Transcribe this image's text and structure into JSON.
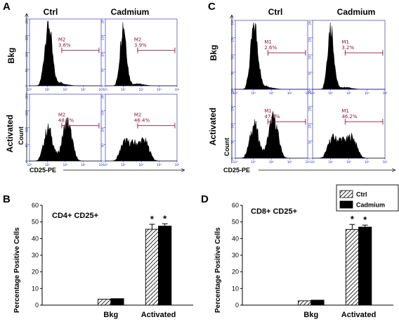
{
  "panel_labels": {
    "A": "A",
    "B": "B",
    "C": "C",
    "D": "D"
  },
  "chart_data": [
    {
      "type": "histogram",
      "panel": "A",
      "columns": [
        "Ctrl",
        "Cadmium"
      ],
      "rows": [
        "Bkg",
        "Activated"
      ],
      "xlabel": "CD25-PE",
      "ylabel": "Count",
      "x_ticks": [
        "10⁰",
        "10¹",
        "10²",
        "10³",
        "10⁴"
      ],
      "y_ticks": [
        "0",
        "50",
        "100",
        "150",
        "200"
      ],
      "ylim": [
        0,
        200
      ],
      "xlim": [
        0,
        4
      ],
      "gate_name": "M2",
      "gates": [
        {
          "row": "Bkg",
          "column": "Ctrl",
          "percent": "3.6%"
        },
        {
          "row": "Bkg",
          "column": "Cadmium",
          "percent": "3.9%"
        },
        {
          "row": "Activated",
          "column": "Ctrl",
          "percent": "48.4%"
        },
        {
          "row": "Activated",
          "column": "Cadmium",
          "percent": "46.4%"
        }
      ]
    },
    {
      "type": "histogram",
      "panel": "C",
      "columns": [
        "Ctrl",
        "Cadmium"
      ],
      "rows": [
        "Bkg",
        "Activated"
      ],
      "xlabel": "CD25-PE",
      "ylabel": "Count",
      "x_ticks": [
        "10⁰",
        "10¹",
        "10²",
        "10³",
        "10⁴"
      ],
      "y_ticks": [
        "0",
        "50",
        "100",
        "150",
        "200"
      ],
      "ylim": [
        0,
        200
      ],
      "xlim": [
        0,
        4
      ],
      "gate_name": "M1",
      "gates": [
        {
          "row": "Bkg",
          "column": "Ctrl",
          "percent": "2.6%"
        },
        {
          "row": "Bkg",
          "column": "Cadmium",
          "percent": "3.2%"
        },
        {
          "row": "Activated",
          "column": "Ctrl",
          "percent": "47.5%"
        },
        {
          "row": "Activated",
          "column": "Cadmium",
          "percent": "46.2%"
        }
      ]
    },
    {
      "type": "bar",
      "panel": "B",
      "title": "CD4+ CD25+",
      "ylabel": "Percentage Positive Cells",
      "categories": [
        "Bkg",
        "Activated"
      ],
      "ylim": [
        0,
        60
      ],
      "y_ticks": [
        "0",
        "10",
        "20",
        "30",
        "40",
        "50",
        "60"
      ],
      "series": [
        {
          "name": "Ctrl",
          "values": [
            3.6,
            45.6
          ],
          "errors": [
            0.3,
            3.0
          ]
        },
        {
          "name": "Cadmium",
          "values": [
            3.9,
            47.5
          ],
          "errors": [
            0.3,
            1.4
          ]
        }
      ],
      "significance": [
        {
          "category": "Activated",
          "series": "Ctrl",
          "mark": "*"
        },
        {
          "category": "Activated",
          "series": "Cadmium",
          "mark": "*"
        }
      ]
    },
    {
      "type": "bar",
      "panel": "D",
      "title": "CD8+ CD25+",
      "ylabel": "Percentage Positive Cells",
      "categories": [
        "Bkg",
        "Activated"
      ],
      "ylim": [
        0,
        60
      ],
      "y_ticks": [
        "0",
        "10",
        "20",
        "30",
        "40",
        "50",
        "60"
      ],
      "series": [
        {
          "name": "Ctrl",
          "values": [
            2.6,
            45.5
          ],
          "errors": [
            0.2,
            3.0
          ]
        },
        {
          "name": "Cadmium",
          "values": [
            3.0,
            46.9
          ],
          "errors": [
            0.2,
            1.2
          ]
        }
      ],
      "legend": {
        "placement": "top-right",
        "entries": [
          "Ctrl",
          "Cadmium"
        ]
      },
      "significance": [
        {
          "category": "Activated",
          "series": "Ctrl",
          "mark": "*"
        },
        {
          "category": "Activated",
          "series": "Cadmium",
          "mark": "*"
        }
      ]
    }
  ],
  "colors": {
    "axis": "#1b1bb0",
    "gate": "#8a1540",
    "histogram": "#000000",
    "bar_solid": "#000000"
  }
}
